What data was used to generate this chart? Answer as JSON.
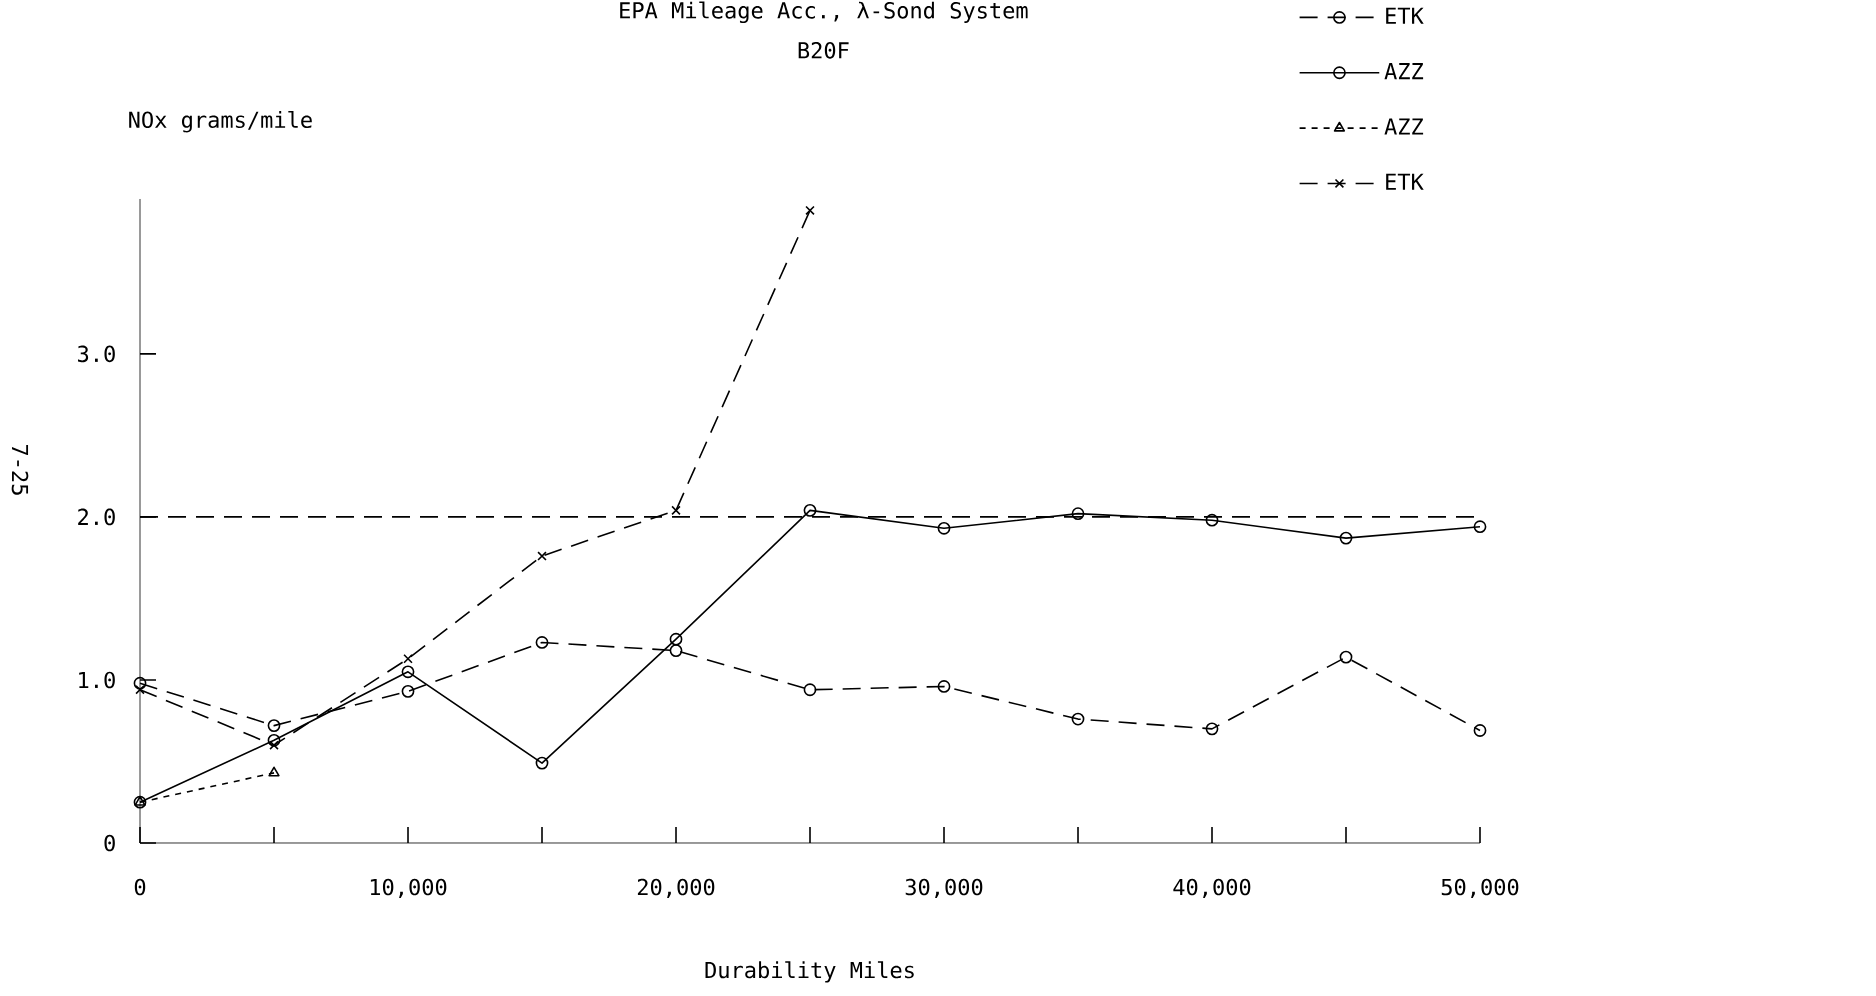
{
  "chart_data": {
    "type": "line",
    "title": "EPA Mileage Acc., λ-Sond System",
    "subtitle": "B20F",
    "xlabel": "Durability Miles",
    "ylabel": "NOx grams/mile",
    "x": [
      0,
      5000,
      10000,
      15000,
      20000,
      25000,
      30000,
      35000,
      40000,
      45000,
      50000
    ],
    "series": [
      {
        "name": "ETK",
        "color": "#000000",
        "marker": "circle",
        "line_style": "dashed",
        "values": [
          0.98,
          0.72,
          0.93,
          1.23,
          1.18,
          0.94,
          0.96,
          0.76,
          0.7,
          1.14,
          0.69
        ]
      },
      {
        "name": "AZZ",
        "color": "#000000",
        "marker": "circle",
        "line_style": "solid",
        "values": [
          0.25,
          0.63,
          1.05,
          0.49,
          1.25,
          2.04,
          1.93,
          2.02,
          1.98,
          1.87,
          1.94
        ]
      },
      {
        "name": "AZZ",
        "color": "#000000",
        "marker": "triangle",
        "line_style": "dotted",
        "values": [
          0.25,
          0.43,
          null,
          null,
          null,
          null,
          null,
          null,
          null,
          null,
          null
        ]
      },
      {
        "name": "ETK",
        "color": "#000000",
        "marker": "cross",
        "line_style": "dashed",
        "values": [
          0.94,
          0.6,
          1.13,
          1.76,
          2.04,
          3.88,
          null,
          null,
          null,
          null,
          null
        ]
      }
    ],
    "xlim": [
      0,
      50000
    ],
    "ylim": [
      0,
      3.95
    ],
    "xticks": [
      0,
      {
        "value": 5000,
        "label": null
      },
      {
        "value": 10000,
        "label": "10,000"
      },
      {
        "value": 15000,
        "label": null
      },
      {
        "value": 20000,
        "label": "20,000"
      },
      {
        "value": 25000,
        "label": null
      },
      {
        "value": 30000,
        "label": "30,000"
      },
      {
        "value": 35000,
        "label": null
      },
      {
        "value": 40000,
        "label": "40,000"
      },
      {
        "value": 45000,
        "label": null
      },
      {
        "value": 50000,
        "label": "50,000"
      }
    ],
    "yticks": [
      0,
      {
        "value": 1,
        "label": "1.0"
      },
      {
        "value": 2,
        "label": "2.0"
      },
      {
        "value": 3,
        "label": "3.0"
      }
    ],
    "ref_lines": [
      {
        "axis": "y",
        "value": 2,
        "line_style": "dashed",
        "color": "#000000"
      }
    ],
    "legend": "top right",
    "grid": false,
    "annotations": [
      "7-25"
    ]
  }
}
